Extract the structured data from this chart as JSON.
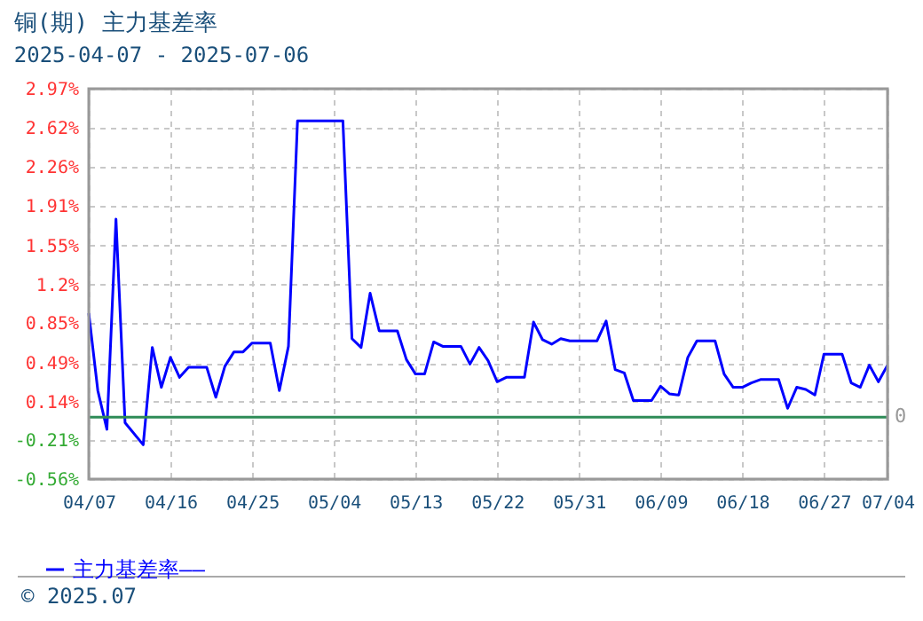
{
  "chart_data": {
    "type": "line",
    "title": "铜(期) 主力基差率",
    "subtitle": "2025-04-07 - 2025-07-06",
    "x": [
      "2025-04-07",
      "2025-04-08",
      "2025-04-09",
      "2025-04-10",
      "2025-04-11",
      "2025-04-13",
      "2025-04-14",
      "2025-04-15",
      "2025-04-16",
      "2025-04-17",
      "2025-04-18",
      "2025-04-20",
      "2025-04-21",
      "2025-04-22",
      "2025-04-23",
      "2025-04-24",
      "2025-04-25",
      "2025-04-27",
      "2025-04-28",
      "2025-04-29",
      "2025-04-30",
      "2025-05-05",
      "2025-05-06",
      "2025-05-07",
      "2025-05-08",
      "2025-05-09",
      "2025-05-11",
      "2025-05-12",
      "2025-05-13",
      "2025-05-14",
      "2025-05-15",
      "2025-05-16",
      "2025-05-18",
      "2025-05-19",
      "2025-05-20",
      "2025-05-21",
      "2025-05-22",
      "2025-05-23",
      "2025-05-25",
      "2025-05-26",
      "2025-05-27",
      "2025-05-28",
      "2025-05-29",
      "2025-05-30",
      "2025-06-02",
      "2025-06-03",
      "2025-06-04",
      "2025-06-05",
      "2025-06-06",
      "2025-06-08",
      "2025-06-09",
      "2025-06-10",
      "2025-06-11",
      "2025-06-12",
      "2025-06-13",
      "2025-06-15",
      "2025-06-16",
      "2025-06-17",
      "2025-06-18",
      "2025-06-19",
      "2025-06-20",
      "2025-06-22",
      "2025-06-23",
      "2025-06-24",
      "2025-06-25",
      "2025-06-26",
      "2025-06-27",
      "2025-06-29",
      "2025-06-30",
      "2025-07-01",
      "2025-07-02",
      "2025-07-03",
      "2025-07-04"
    ],
    "series": [
      {
        "name": "主力基差率——",
        "color": "#0000ff",
        "values": [
          0.94,
          0.24,
          -0.11,
          1.79,
          -0.05,
          -0.25,
          0.63,
          0.27,
          0.54,
          0.36,
          0.45,
          0.45,
          0.18,
          0.46,
          0.59,
          0.59,
          0.67,
          0.67,
          0.24,
          0.64,
          2.68,
          2.68,
          0.71,
          0.63,
          1.12,
          0.78,
          0.78,
          0.52,
          0.39,
          0.39,
          0.68,
          0.64,
          0.64,
          0.48,
          0.63,
          0.51,
          0.32,
          0.36,
          0.36,
          0.86,
          0.7,
          0.66,
          0.71,
          0.69,
          0.69,
          0.87,
          0.43,
          0.4,
          0.15,
          0.15,
          0.28,
          0.21,
          0.2,
          0.54,
          0.69,
          0.69,
          0.39,
          0.27,
          0.27,
          0.31,
          0.34,
          0.34,
          0.08,
          0.27,
          0.25,
          0.2,
          0.57,
          0.57,
          0.31,
          0.27,
          0.47,
          0.32,
          0.47
        ]
      }
    ],
    "xlim": [
      "2025-04-07",
      "2025-07-04"
    ],
    "xticks": [
      {
        "value": "2025-04-07",
        "label": "04/07"
      },
      {
        "value": "2025-04-16",
        "label": "04/16"
      },
      {
        "value": "2025-04-25",
        "label": "04/25"
      },
      {
        "value": "2025-05-04",
        "label": "05/04"
      },
      {
        "value": "2025-05-13",
        "label": "05/13"
      },
      {
        "value": "2025-05-22",
        "label": "05/22"
      },
      {
        "value": "2025-05-31",
        "label": "05/31"
      },
      {
        "value": "2025-06-09",
        "label": "06/09"
      },
      {
        "value": "2025-06-18",
        "label": "06/18"
      },
      {
        "value": "2025-06-27",
        "label": "06/27"
      },
      {
        "value": "2025-07-04",
        "label": "07/04"
      }
    ],
    "ylim": [
      -0.56,
      2.97
    ],
    "yticks": [
      {
        "value": -0.56,
        "label": "-0.56%"
      },
      {
        "value": -0.21,
        "label": "-0.21%"
      },
      {
        "value": 0.14,
        "label": "0.14%"
      },
      {
        "value": 0.49,
        "label": "0.49%"
      },
      {
        "value": 0.85,
        "label": "0.85%"
      },
      {
        "value": 1.2,
        "label": "1.2%"
      },
      {
        "value": 1.55,
        "label": "1.55%"
      },
      {
        "value": 1.91,
        "label": "1.91%"
      },
      {
        "value": 2.26,
        "label": "2.26%"
      },
      {
        "value": 2.62,
        "label": "2.62%"
      },
      {
        "value": 2.97,
        "label": "2.97%"
      }
    ],
    "ref_lines": [
      {
        "axis": "y",
        "value": 0,
        "label": "0",
        "color": "#2e8b57"
      }
    ],
    "grid": true,
    "legend": "bottom left",
    "marker": "none",
    "line_style": "solid",
    "annotations": [
      "© 2025.07"
    ]
  }
}
